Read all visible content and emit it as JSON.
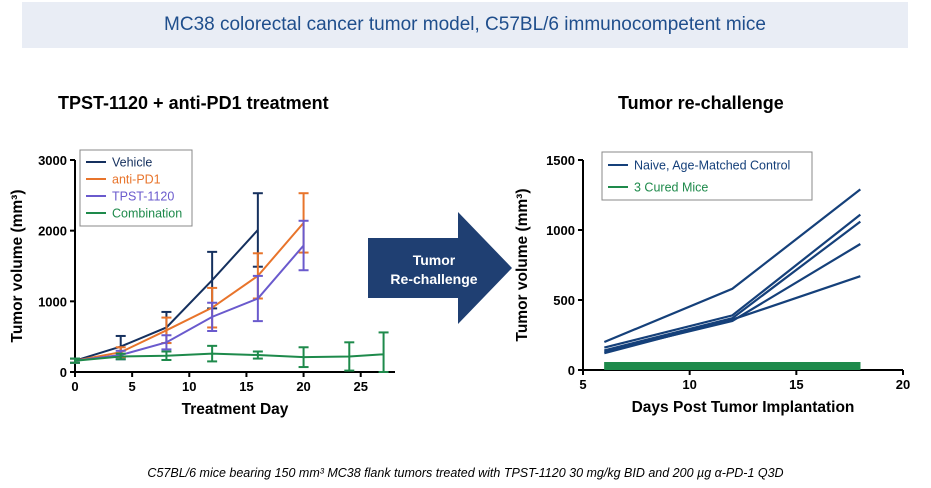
{
  "banner": {
    "text": "MC38 colorectal cancer tumor model, C57BL/6 immunocompetent mice"
  },
  "arrow": {
    "line1": "Tumor",
    "line2": "Re-challenge",
    "color": "#1f3f72"
  },
  "caption": "C57BL/6 mice bearing 150 mm³ MC38 flank tumors treated with TPST-1120 30 mg/kg BID and 200 µg α-PD-1 Q3D",
  "chart_data": [
    {
      "type": "line",
      "title": "TPST-1120 + anti-PD1 treatment",
      "xlabel": "Treatment Day",
      "ylabel": "Tumor volume (mm³)",
      "xlim": [
        0,
        28
      ],
      "ylim": [
        0,
        3000
      ],
      "xticks": [
        0,
        5,
        10,
        15,
        20,
        25
      ],
      "yticks": [
        0,
        1000,
        2000,
        3000
      ],
      "legend_position": "top-left",
      "series": [
        {
          "name": "Vehicle",
          "color": "#15305e",
          "x": [
            0,
            4,
            8,
            12,
            16
          ],
          "y": [
            160,
            360,
            630,
            1300,
            2010
          ],
          "err": [
            30,
            150,
            220,
            400,
            520
          ]
        },
        {
          "name": "anti-PD1",
          "color": "#e8742b",
          "x": [
            0,
            4,
            8,
            12,
            16,
            20
          ],
          "y": [
            160,
            280,
            590,
            910,
            1360,
            2110
          ],
          "err": [
            30,
            70,
            180,
            280,
            320,
            420
          ]
        },
        {
          "name": "TPST-1120",
          "color": "#6a5acd",
          "x": [
            0,
            4,
            8,
            12,
            16,
            20
          ],
          "y": [
            160,
            240,
            420,
            780,
            1040,
            1790
          ],
          "err": [
            30,
            60,
            100,
            200,
            320,
            350
          ]
        },
        {
          "name": "Combination",
          "color": "#1e8a4b",
          "x": [
            0,
            4,
            8,
            12,
            16,
            20,
            24,
            27
          ],
          "y": [
            160,
            220,
            230,
            260,
            240,
            210,
            220,
            250
          ],
          "err": [
            30,
            40,
            60,
            110,
            50,
            140,
            200,
            310
          ]
        }
      ]
    },
    {
      "type": "line",
      "title": "Tumor re-challenge",
      "xlabel": "Days Post Tumor Implantation",
      "ylabel": "Tumor volume (mm³)",
      "xlim": [
        5,
        20
      ],
      "ylim": [
        0,
        1500
      ],
      "xticks": [
        5,
        10,
        15,
        20
      ],
      "yticks": [
        0,
        500,
        1000,
        1500
      ],
      "legend_position": "top-left",
      "series": [
        {
          "name": "Naive, Age-Matched Control",
          "color": "#15407a",
          "lines": [
            {
              "x": [
                6,
                12,
                18
              ],
              "y": [
                200,
                580,
                1290
              ]
            },
            {
              "x": [
                6,
                12,
                18
              ],
              "y": [
                160,
                390,
                1110
              ]
            },
            {
              "x": [
                6,
                12,
                18
              ],
              "y": [
                140,
                370,
                1060
              ]
            },
            {
              "x": [
                6,
                12,
                18
              ],
              "y": [
                130,
                350,
                900
              ]
            },
            {
              "x": [
                6,
                12,
                18
              ],
              "y": [
                120,
                360,
                670
              ]
            }
          ]
        },
        {
          "name": "3 Cured Mice",
          "color": "#1e8a4b",
          "lines": [
            {
              "x": [
                6,
                18
              ],
              "y": [
                0,
                0
              ]
            },
            {
              "x": [
                6,
                18
              ],
              "y": [
                0,
                0
              ]
            },
            {
              "x": [
                6,
                18
              ],
              "y": [
                0,
                0
              ]
            }
          ]
        }
      ]
    }
  ]
}
